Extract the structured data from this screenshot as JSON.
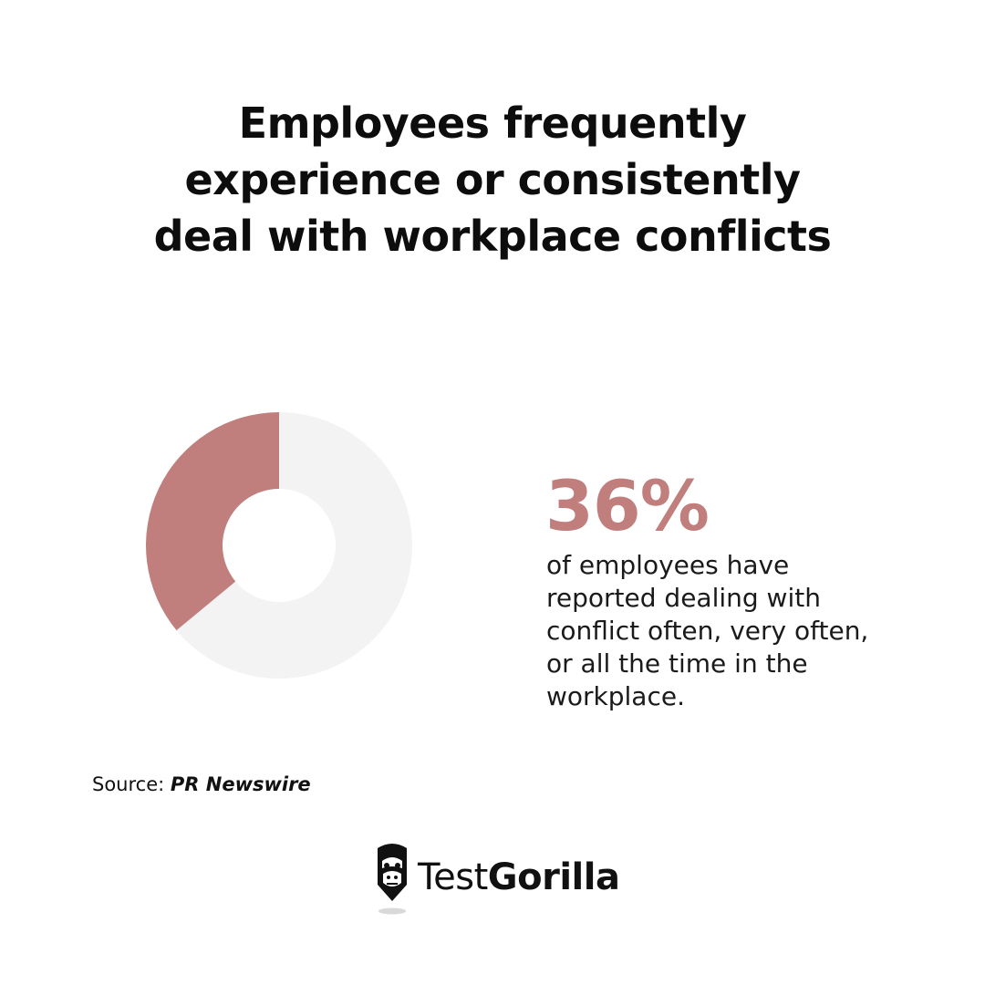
{
  "title_lines": [
    "Employees frequently",
    "experience or consistently",
    "deal with workplace conflicts"
  ],
  "stat": {
    "value": "36%",
    "description_lines": [
      "of employees have",
      "reported dealing with",
      "conflict often, very often,",
      "or all the time in the",
      "workplace."
    ]
  },
  "source": {
    "prefix": "Source:",
    "name": "PR Newswire"
  },
  "brand": {
    "name_regular": "Test",
    "name_bold": "Gorilla",
    "logo_icon": "gorilla-head-icon"
  },
  "colors": {
    "accent": "#C07E7C",
    "track": "#F3F3F3",
    "text": "#111111"
  },
  "chart_data": {
    "type": "pie",
    "donut": true,
    "values": [
      36,
      64
    ],
    "unit": "%"
  }
}
